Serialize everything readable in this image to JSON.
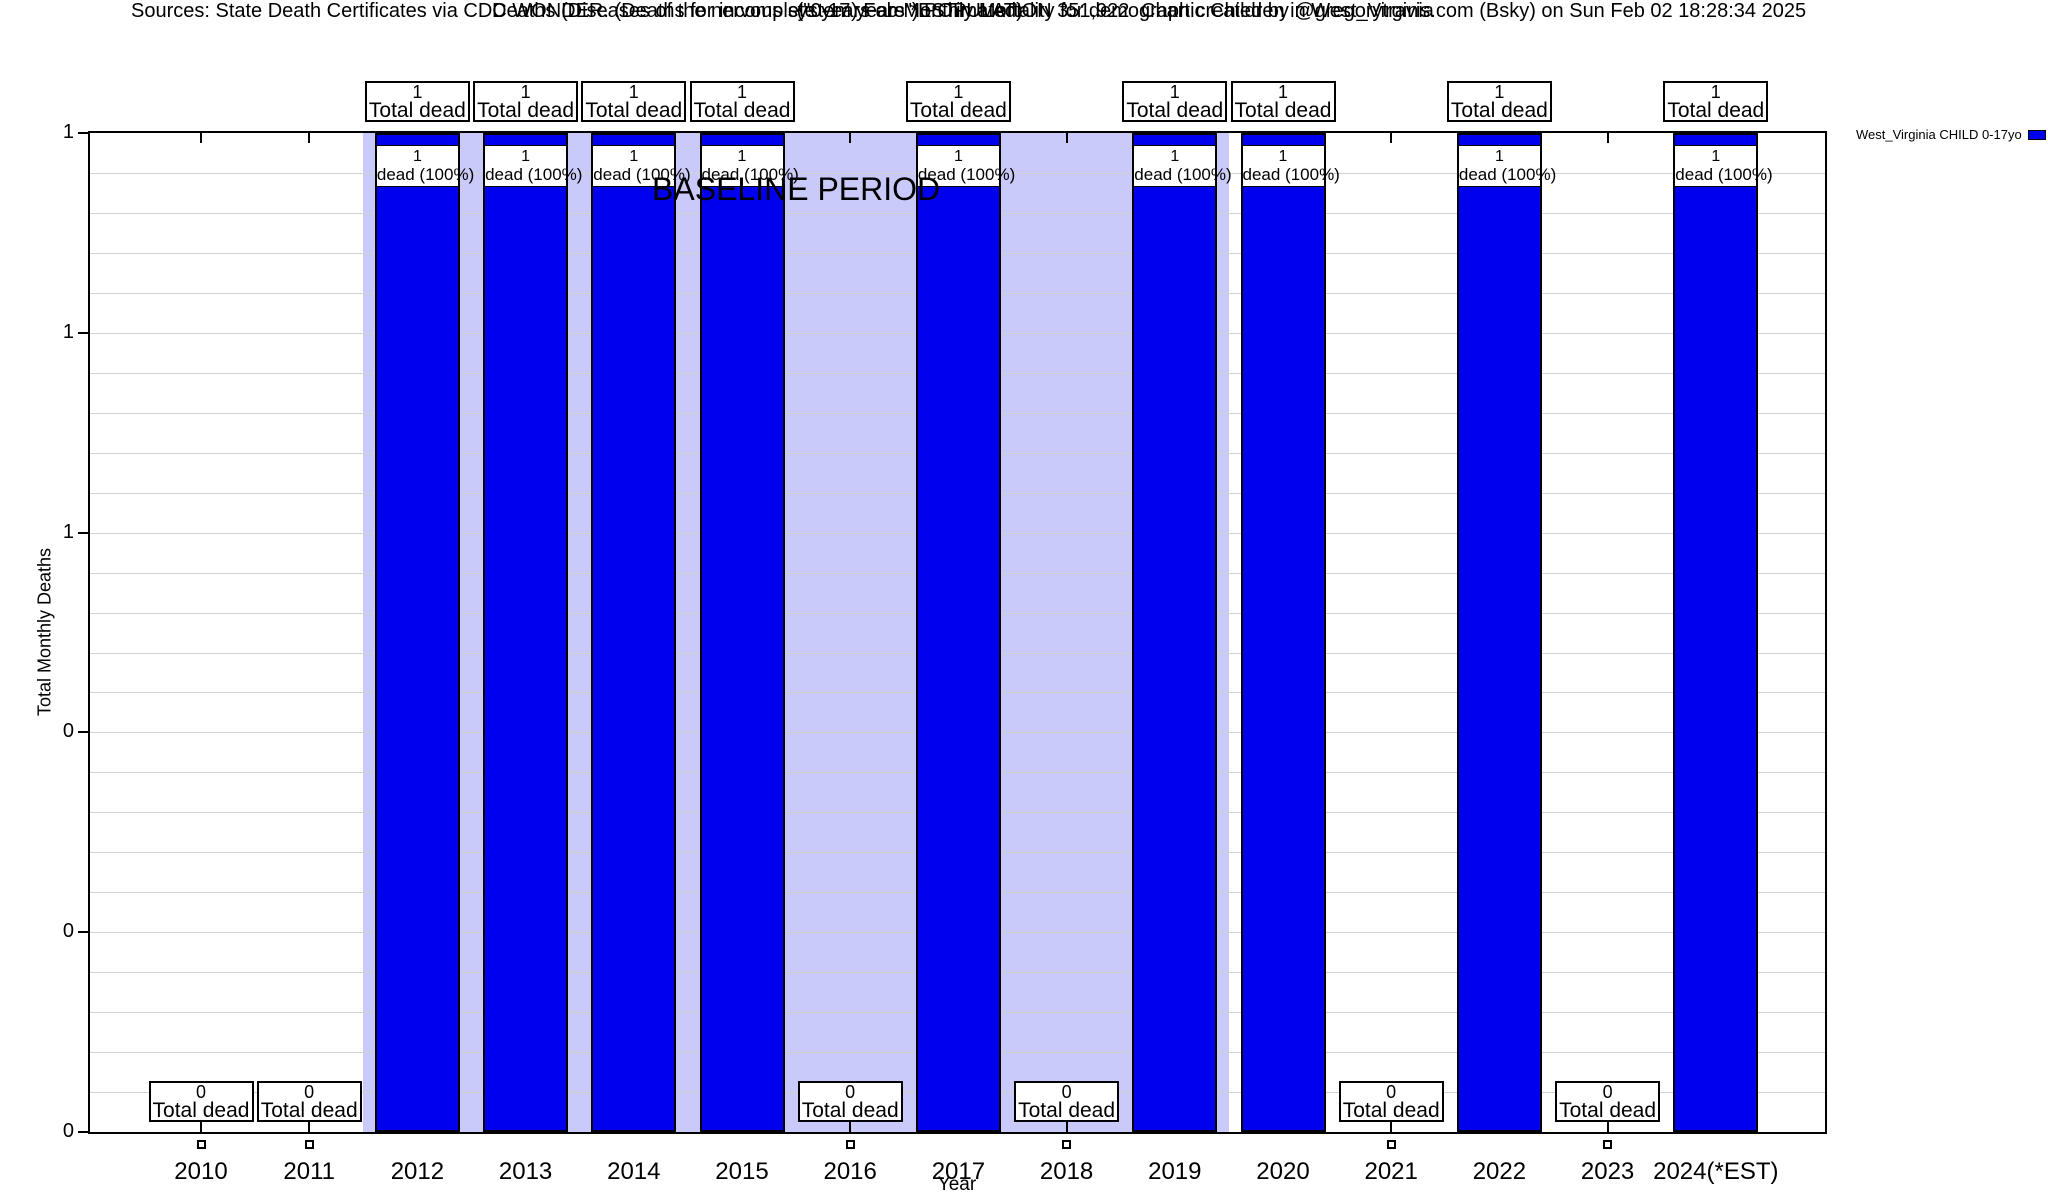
{
  "header": {
    "title": "Deaths (Diseases of the nervous system) Feb Monthly Mortality for demographic Children in West_Virginia",
    "subtitle": "(\"0-17 years\") POPULATION 351,922",
    "source_note": "Sources: State Death Certificates via CDC WONDER. (Deaths for incomplete years are *ESTimated)",
    "credit_note": "Chart created by @gregorytravis.com (Bsky) on Sun Feb 02 18:28:34 2025"
  },
  "chart_data": {
    "type": "bar",
    "title": "Deaths (Diseases of the nervous system) Feb Monthly Mortality for demographic Children in West_Virginia",
    "subtitle": "(\"0-17 years\") POPULATION 351,922",
    "xlabel": "Year",
    "ylabel": "Total Monthly Deaths",
    "categories": [
      "2010",
      "2011",
      "2012",
      "2013",
      "2014",
      "2015",
      "2016",
      "2017",
      "2018",
      "2019",
      "2020",
      "2021",
      "2022",
      "2023",
      "2024(*EST)"
    ],
    "values": [
      0,
      0,
      1,
      1,
      1,
      1,
      0,
      1,
      0,
      1,
      1,
      0,
      1,
      0,
      1
    ],
    "ylim": [
      0,
      1
    ],
    "ytick_values": [
      1,
      0.8,
      0.6,
      0.4,
      0.2,
      0
    ],
    "ytick_labels": [
      "1",
      "1",
      "1",
      "0",
      "0",
      "0"
    ],
    "grid": true,
    "minor_gridlines_per_major": 5,
    "bar_color": "#0000EE",
    "band": {
      "label": "BASELINE PERIOD",
      "start_category": "2012",
      "end_category": "2019",
      "color": "#C9C9FA"
    },
    "annotations": {
      "nonzero_top_label": "Total dead",
      "nonzero_inbar_label": "dead (100%)",
      "zero_bottom_label": "Total dead"
    },
    "legend": {
      "position": "outside-upper-right",
      "entries": [
        {
          "label": "West_Virginia CHILD 0-17yo",
          "color": "#0000EE"
        }
      ]
    },
    "colors": {
      "grid": "#D2D2D2",
      "band": "#C9C9FA",
      "bar": "#0000EE",
      "axis": "#000000"
    }
  }
}
